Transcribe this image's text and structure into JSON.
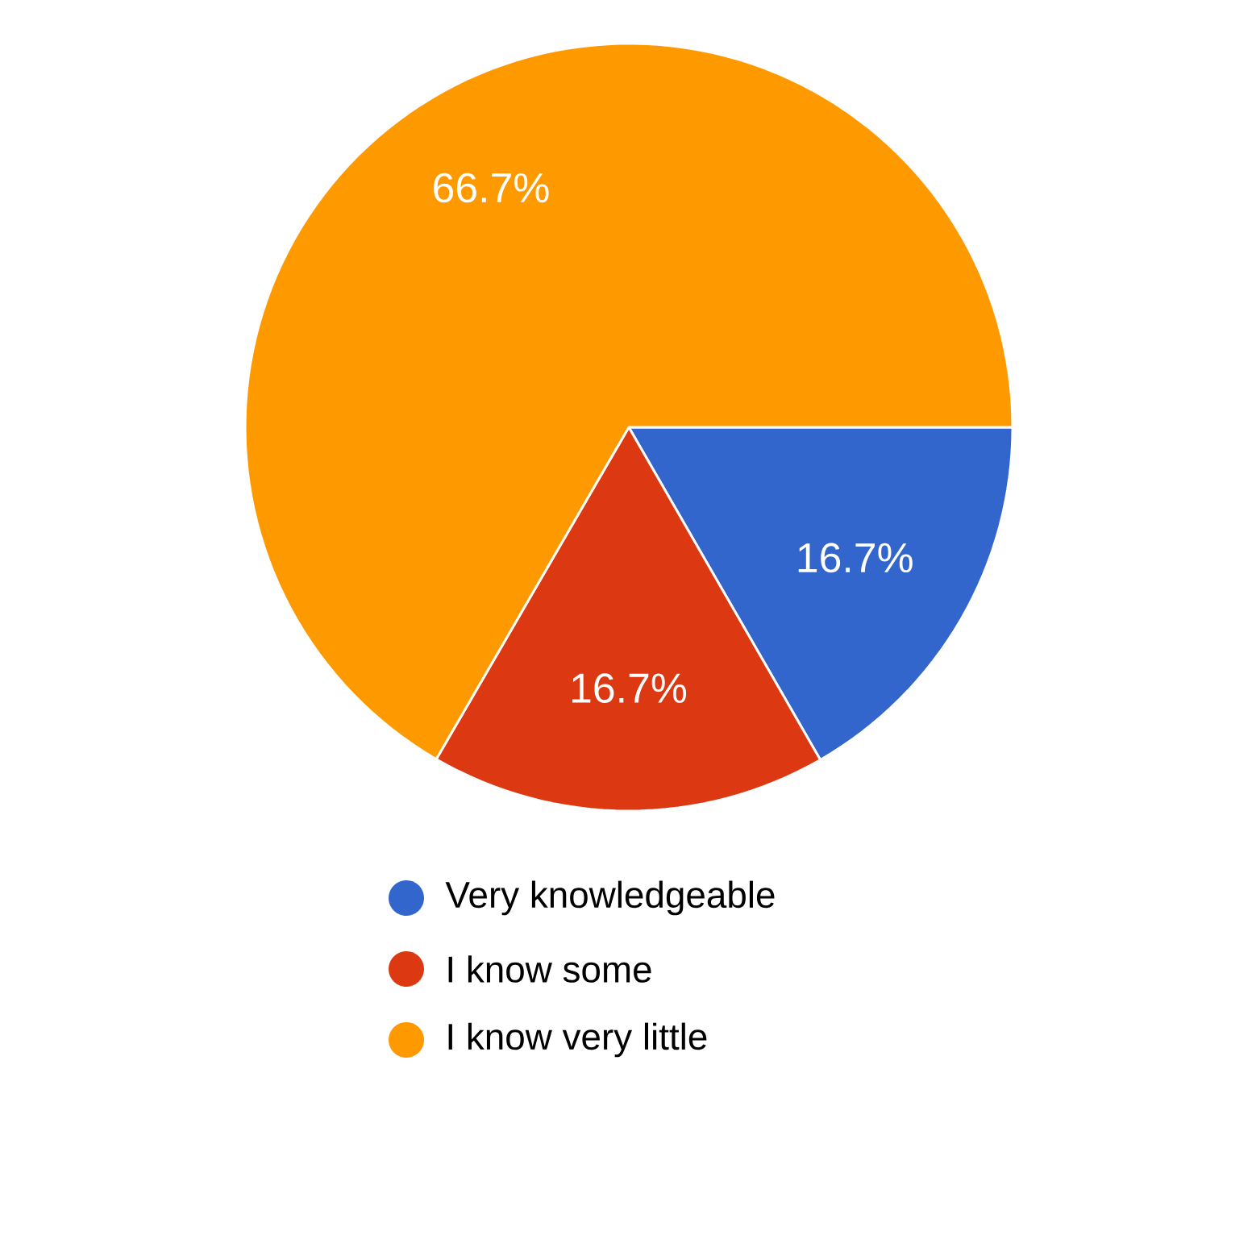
{
  "chart_data": {
    "type": "pie",
    "categories": [
      "Very knowledgeable",
      "I know some",
      "I know very little"
    ],
    "values": [
      16.7,
      16.7,
      66.7
    ],
    "colors": [
      "#3366cc",
      "#dc3912",
      "#ff9900"
    ],
    "value_labels": [
      "16.7%",
      "16.7%",
      "66.7%"
    ],
    "legend": "bottom"
  }
}
